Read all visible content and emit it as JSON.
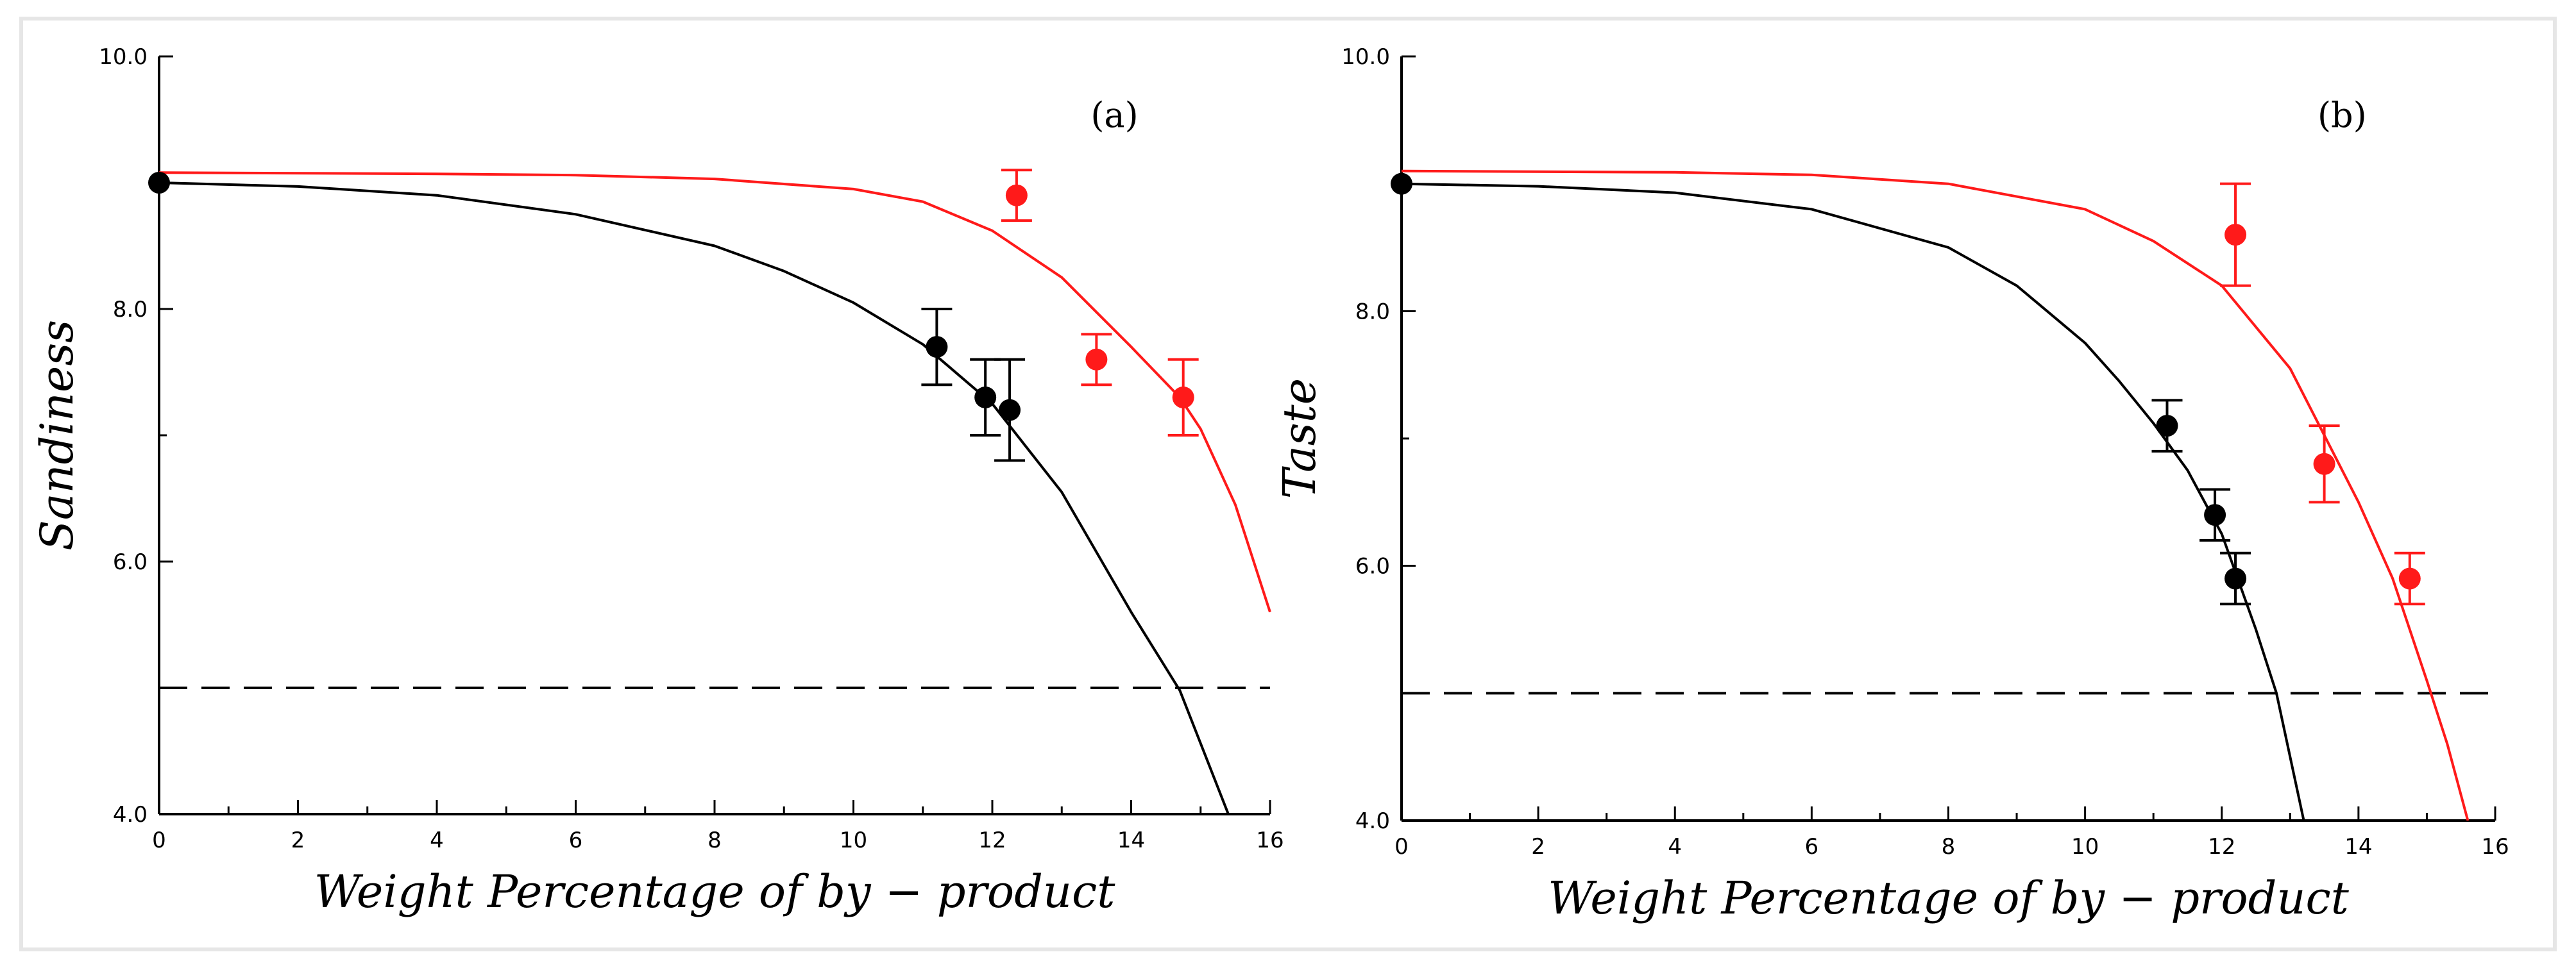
{
  "chart_data": [
    {
      "type": "scatter",
      "panel_label": "(a)",
      "xlabel": "Weight Percentage of by − product",
      "ylabel": "Sandiness",
      "xlim": [
        0,
        16
      ],
      "ylim": [
        4.0,
        10.0
      ],
      "x_ticks": [
        "0",
        "2",
        "4",
        "6",
        "8",
        "10",
        "12",
        "14",
        "16"
      ],
      "y_ticks": [
        "4.0",
        "6.0",
        "8.0",
        "10.0"
      ],
      "reference_line_y": 5.0,
      "series": [
        {
          "color": "#000000",
          "points": [
            {
              "x": 0.0,
              "y": 9.0,
              "err": 0.0
            },
            {
              "x": 11.2,
              "y": 7.7,
              "err": 0.3
            },
            {
              "x": 11.9,
              "y": 7.3,
              "err": 0.3
            },
            {
              "x": 12.25,
              "y": 7.2,
              "err": 0.4
            }
          ],
          "fit": [
            [
              0,
              9.0
            ],
            [
              2,
              8.97
            ],
            [
              4,
              8.9
            ],
            [
              6,
              8.75
            ],
            [
              8,
              8.5
            ],
            [
              9,
              8.3
            ],
            [
              10,
              8.05
            ],
            [
              11,
              7.72
            ],
            [
              12,
              7.25
            ],
            [
              13,
              6.55
            ],
            [
              14,
              5.6
            ],
            [
              14.7,
              4.98
            ],
            [
              15.4,
              4.0
            ]
          ]
        },
        {
          "color": "#ff1a1a",
          "points": [
            {
              "x": 12.35,
              "y": 8.9,
              "err": 0.2
            },
            {
              "x": 13.5,
              "y": 7.6,
              "err": 0.2
            },
            {
              "x": 14.75,
              "y": 7.3,
              "err": 0.3
            }
          ],
          "fit": [
            [
              0,
              9.08
            ],
            [
              4,
              9.07
            ],
            [
              6,
              9.06
            ],
            [
              8,
              9.03
            ],
            [
              10,
              8.95
            ],
            [
              11,
              8.85
            ],
            [
              12,
              8.62
            ],
            [
              13,
              8.25
            ],
            [
              14,
              7.7
            ],
            [
              14.7,
              7.3
            ],
            [
              15,
              7.05
            ],
            [
              15.5,
              6.45
            ],
            [
              16,
              5.6
            ]
          ]
        }
      ]
    },
    {
      "type": "scatter",
      "panel_label": "(b)",
      "xlabel": "Weight Percentage of by − product",
      "ylabel": "Taste",
      "xlim": [
        0,
        16
      ],
      "ylim": [
        4.0,
        10.0
      ],
      "x_ticks": [
        "0",
        "2",
        "4",
        "6",
        "8",
        "10",
        "12",
        "14",
        "16"
      ],
      "y_ticks": [
        "4.0",
        "6.0",
        "8.0",
        "10.0"
      ],
      "reference_line_y": 5.0,
      "series": [
        {
          "color": "#000000",
          "points": [
            {
              "x": 0.0,
              "y": 9.0,
              "err": 0.0
            },
            {
              "x": 11.2,
              "y": 7.1,
              "err": 0.2
            },
            {
              "x": 11.9,
              "y": 6.4,
              "err": 0.2
            },
            {
              "x": 12.2,
              "y": 5.9,
              "err": 0.2
            }
          ],
          "fit": [
            [
              0,
              9.0
            ],
            [
              2,
              8.98
            ],
            [
              4,
              8.93
            ],
            [
              6,
              8.8
            ],
            [
              8,
              8.5
            ],
            [
              9,
              8.2
            ],
            [
              10,
              7.75
            ],
            [
              10.5,
              7.45
            ],
            [
              11,
              7.12
            ],
            [
              11.5,
              6.75
            ],
            [
              12,
              6.25
            ],
            [
              12.5,
              5.5
            ],
            [
              12.8,
              5.0
            ],
            [
              13.2,
              4.0
            ]
          ]
        },
        {
          "color": "#ff1a1a",
          "points": [
            {
              "x": 12.2,
              "y": 8.6,
              "err": 0.4
            },
            {
              "x": 13.5,
              "y": 6.8,
              "err": 0.3
            },
            {
              "x": 14.75,
              "y": 5.9,
              "err": 0.2
            }
          ],
          "fit": [
            [
              0,
              9.1
            ],
            [
              4,
              9.09
            ],
            [
              6,
              9.07
            ],
            [
              8,
              9.0
            ],
            [
              10,
              8.8
            ],
            [
              11,
              8.55
            ],
            [
              12,
              8.2
            ],
            [
              13,
              7.55
            ],
            [
              14,
              6.5
            ],
            [
              14.5,
              5.9
            ],
            [
              15,
              5.1
            ],
            [
              15.3,
              4.6
            ],
            [
              15.6,
              4.0
            ]
          ]
        }
      ]
    }
  ]
}
